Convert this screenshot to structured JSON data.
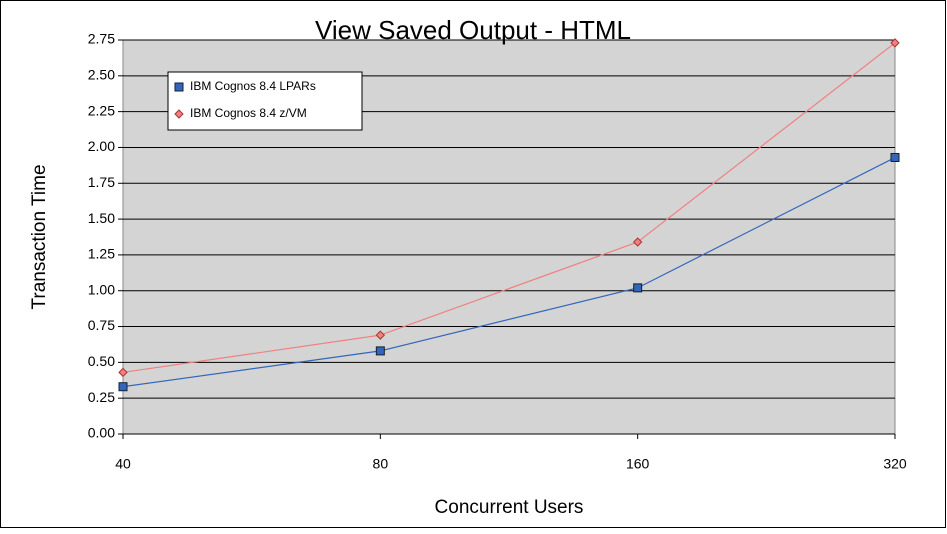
{
  "chart_data": {
    "type": "line",
    "title": "View Saved Output - HTML",
    "x_label": "Concurrent Users",
    "y_label": "Transaction Time",
    "categories": [
      "40",
      "80",
      "160",
      "320"
    ],
    "series": [
      {
        "name": "IBM Cognos 8.4 LPARs",
        "color": "#3366bb",
        "marker": "square",
        "values": [
          0.33,
          0.58,
          1.02,
          1.93
        ]
      },
      {
        "name": "IBM Cognos 8.4 z/VM",
        "color": "#f08080",
        "marker": "diamond",
        "values": [
          0.43,
          0.69,
          1.34,
          2.73
        ]
      }
    ],
    "ylim": [
      0,
      2.75
    ],
    "yticks": [
      {
        "value": 0,
        "label": "0.00"
      },
      {
        "value": 0.25,
        "label": "0.25"
      },
      {
        "value": 0.5,
        "label": "0.50"
      },
      {
        "value": 0.75,
        "label": "0.75"
      },
      {
        "value": 1,
        "label": "1.00"
      },
      {
        "value": 1.25,
        "label": "1.25"
      },
      {
        "value": 1.5,
        "label": "1.50"
      },
      {
        "value": 1.75,
        "label": "1.75"
      },
      {
        "value": 2,
        "label": "2.00"
      },
      {
        "value": 2.25,
        "label": "2.25"
      },
      {
        "value": 2.5,
        "label": "2.50"
      },
      {
        "value": 2.75,
        "label": "2.75"
      }
    ],
    "grid": true,
    "legend": "upper left"
  }
}
